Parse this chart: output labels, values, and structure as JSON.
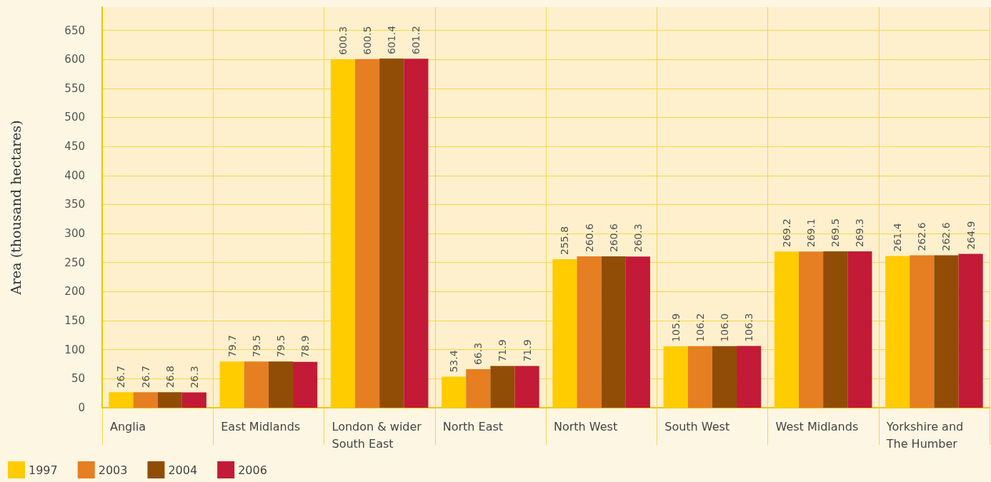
{
  "chart_data": {
    "type": "bar",
    "ylabel": "Area (thousand hectares)",
    "categories": [
      "Anglia",
      "East Midlands",
      "London & wider South East",
      "North East",
      "North West",
      "South West",
      "West Midlands",
      "Yorkshire and The Humber"
    ],
    "series": [
      {
        "name": "1997",
        "color": "#ffcc00",
        "values": [
          26.7,
          79.7,
          600.3,
          53.4,
          255.8,
          105.9,
          269.2,
          261.4
        ],
        "value_labels": [
          "26.7",
          "79.7",
          "600.3",
          "53.4",
          "255.8",
          "105.9",
          "269.2",
          "261.4"
        ]
      },
      {
        "name": "2003",
        "color": "#e67e22",
        "values": [
          26.7,
          79.5,
          600.5,
          66.3,
          260.6,
          106.2,
          269.1,
          262.6
        ],
        "value_labels": [
          "26.7",
          "79.5",
          "600.5",
          "66.3",
          "260.6",
          "106.2",
          "269.1",
          "262.6"
        ]
      },
      {
        "name": "2004",
        "color": "#914d06",
        "values": [
          26.8,
          79.5,
          601.4,
          71.9,
          260.6,
          106.0,
          269.5,
          262.6
        ],
        "value_labels": [
          "26.8",
          "79.5",
          "601.4",
          "71.9",
          "260.6",
          "106.0",
          "269.5",
          "262.6"
        ]
      },
      {
        "name": "2006",
        "color": "#c21a37",
        "values": [
          26.3,
          78.9,
          601.2,
          71.9,
          260.3,
          106.3,
          269.3,
          264.9
        ],
        "value_labels": [
          "26.3",
          "78.9",
          "601.2",
          "71.9",
          "260.3",
          "106.3",
          "269.3",
          "264.9"
        ]
      }
    ],
    "ylim": [
      0,
      690
    ],
    "yticks": [
      0,
      50,
      100,
      150,
      200,
      250,
      300,
      350,
      400,
      450,
      500,
      550,
      600,
      650
    ],
    "grid": true,
    "legend": "bottom left"
  }
}
